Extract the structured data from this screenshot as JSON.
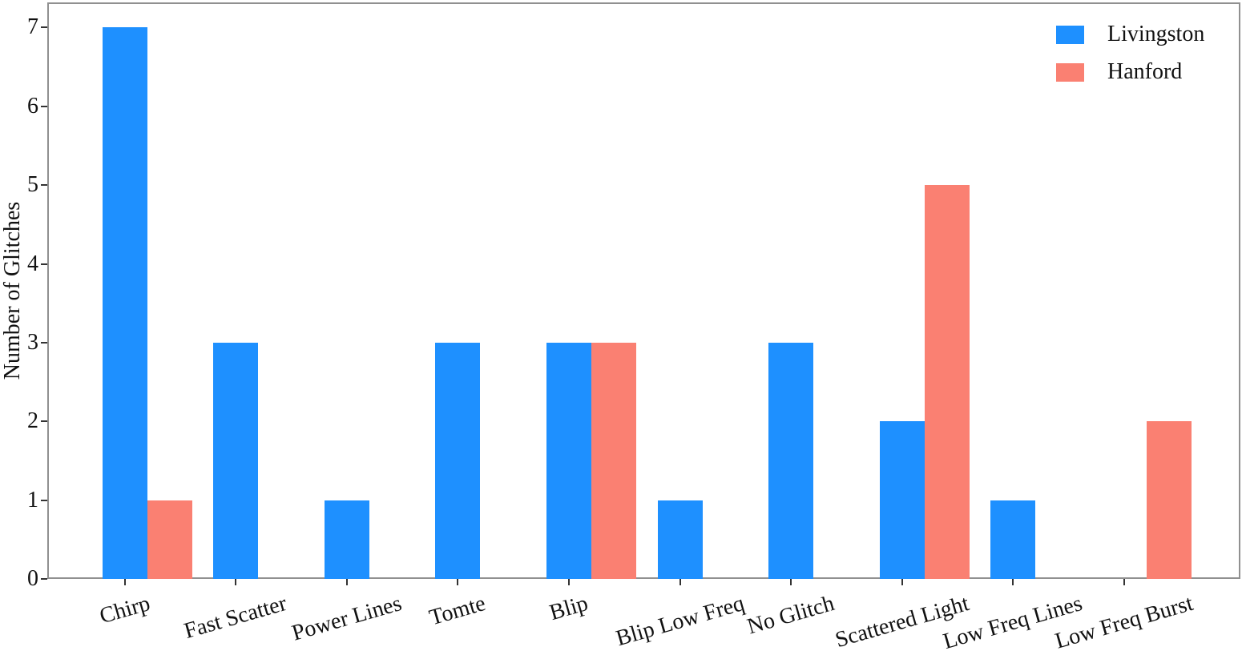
{
  "chart_data": {
    "type": "bar",
    "title": "",
    "xlabel": "",
    "ylabel": "Number of Glitches",
    "categories": [
      "Chirp",
      "Fast Scatter",
      "Power Lines",
      "Tomte",
      "Blip",
      "Blip Low Freq",
      "No Glitch",
      "Scattered Light",
      "Low Freq Lines",
      "Low Freq Burst"
    ],
    "series": [
      {
        "name": "Livingston",
        "color": "#1E90FF",
        "values": [
          7,
          3,
          1,
          3,
          3,
          1,
          3,
          2,
          1,
          0
        ]
      },
      {
        "name": "Hanford",
        "color": "#FA8072",
        "values": [
          1,
          0,
          0,
          0,
          3,
          0,
          0,
          5,
          0,
          2
        ]
      }
    ],
    "ylim": [
      0,
      7.32
    ],
    "yticks": [
      0,
      1,
      2,
      3,
      4,
      5,
      6,
      7
    ],
    "grid": false,
    "legend_position": "upper-right",
    "xtick_rotation_deg": 16,
    "colors": {
      "spine": "#909090",
      "tick": "#333333",
      "text": "#111111",
      "background": "#ffffff"
    }
  }
}
